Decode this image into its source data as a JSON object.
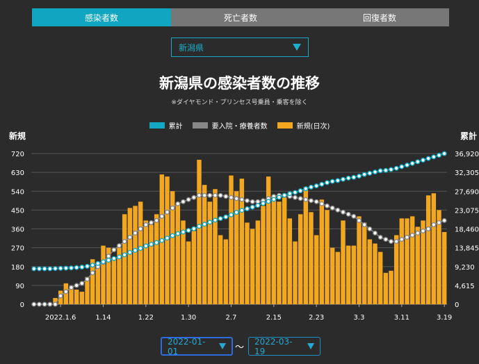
{
  "tabs": [
    "感染者数",
    "死亡者数",
    "回復者数"
  ],
  "prefecture": "新潟県",
  "chart_data": {
    "type": "bar",
    "title": "新潟県の感染者数の推移",
    "subtitle": "※ダイヤモンド・プリンセス号乗員・乗客を除く",
    "legend": [
      "累計",
      "要入院・療養者数",
      "新規(日次)"
    ],
    "ylabel_left": "新規",
    "ylabel_right": "累計",
    "ylim_left": [
      0,
      720
    ],
    "ylim_right": [
      0,
      36920
    ],
    "yticks_left": [
      "0",
      "90",
      "180",
      "270",
      "360",
      "450",
      "540",
      "630",
      "720"
    ],
    "yticks_right": [
      "0",
      "4,615",
      "9,230",
      "13,845",
      "18,460",
      "23,075",
      "27,690",
      "32,305",
      "36,920"
    ],
    "xtick_labels": [
      "2022.1.6",
      "1.14",
      "1.22",
      "1.30",
      "2.7",
      "2.15",
      "2.23",
      "3.3",
      "3.11",
      "3.19"
    ],
    "xtick_index": [
      5,
      13,
      21,
      29,
      37,
      45,
      53,
      61,
      69,
      77
    ],
    "new_cases": [
      0,
      0,
      0,
      0,
      30,
      65,
      100,
      80,
      70,
      60,
      130,
      215,
      200,
      280,
      270,
      215,
      270,
      430,
      460,
      470,
      490,
      400,
      380,
      430,
      620,
      610,
      540,
      480,
      400,
      300,
      350,
      690,
      570,
      490,
      550,
      330,
      310,
      615,
      540,
      600,
      390,
      360,
      400,
      470,
      610,
      510,
      490,
      510,
      410,
      300,
      430,
      560,
      440,
      330,
      500,
      450,
      270,
      250,
      400,
      280,
      280,
      420,
      390,
      310,
      290,
      250,
      150,
      160,
      330,
      410,
      410,
      420,
      370,
      400,
      520,
      530,
      450,
      345
    ],
    "cumulative": [
      8700,
      8700,
      8700,
      8700,
      8750,
      8800,
      8850,
      8900,
      9000,
      9100,
      9300,
      9600,
      10000,
      10400,
      10800,
      11200,
      11600,
      12100,
      12700,
      13200,
      13700,
      14300,
      14700,
      15100,
      15600,
      16200,
      16800,
      17300,
      17700,
      18100,
      18500,
      19100,
      19600,
      20100,
      20600,
      21000,
      21400,
      21900,
      22500,
      23000,
      23400,
      23800,
      24200,
      24700,
      25200,
      25700,
      26200,
      26700,
      27100,
      27400,
      27800,
      28300,
      28700,
      29000,
      29400,
      29800,
      30100,
      30300,
      30600,
      30900,
      31100,
      31400,
      31800,
      32100,
      32400,
      32700,
      32800,
      33000,
      33300,
      33700,
      34100,
      34500,
      34900,
      35300,
      35700,
      36100,
      36500,
      36900
    ],
    "hospitalized": [
      0,
      0,
      0,
      0,
      0,
      40,
      60,
      80,
      90,
      100,
      120,
      150,
      180,
      200,
      230,
      260,
      280,
      300,
      320,
      340,
      360,
      380,
      390,
      400,
      420,
      440,
      460,
      480,
      490,
      500,
      510,
      520,
      520,
      520,
      520,
      520,
      515,
      510,
      505,
      500,
      495,
      490,
      490,
      495,
      505,
      515,
      520,
      520,
      515,
      510,
      505,
      500,
      495,
      490,
      480,
      470,
      460,
      450,
      440,
      430,
      420,
      400,
      380,
      360,
      340,
      320,
      310,
      300,
      300,
      310,
      320,
      330,
      340,
      350,
      360,
      380,
      390,
      400
    ],
    "colors": {
      "new": "#f2a71e",
      "cumulative": "#13a9c4",
      "hospitalized": "#888888"
    }
  },
  "date_from": "2022-01-01",
  "date_to": "2022-03-19",
  "tilde": "〜"
}
